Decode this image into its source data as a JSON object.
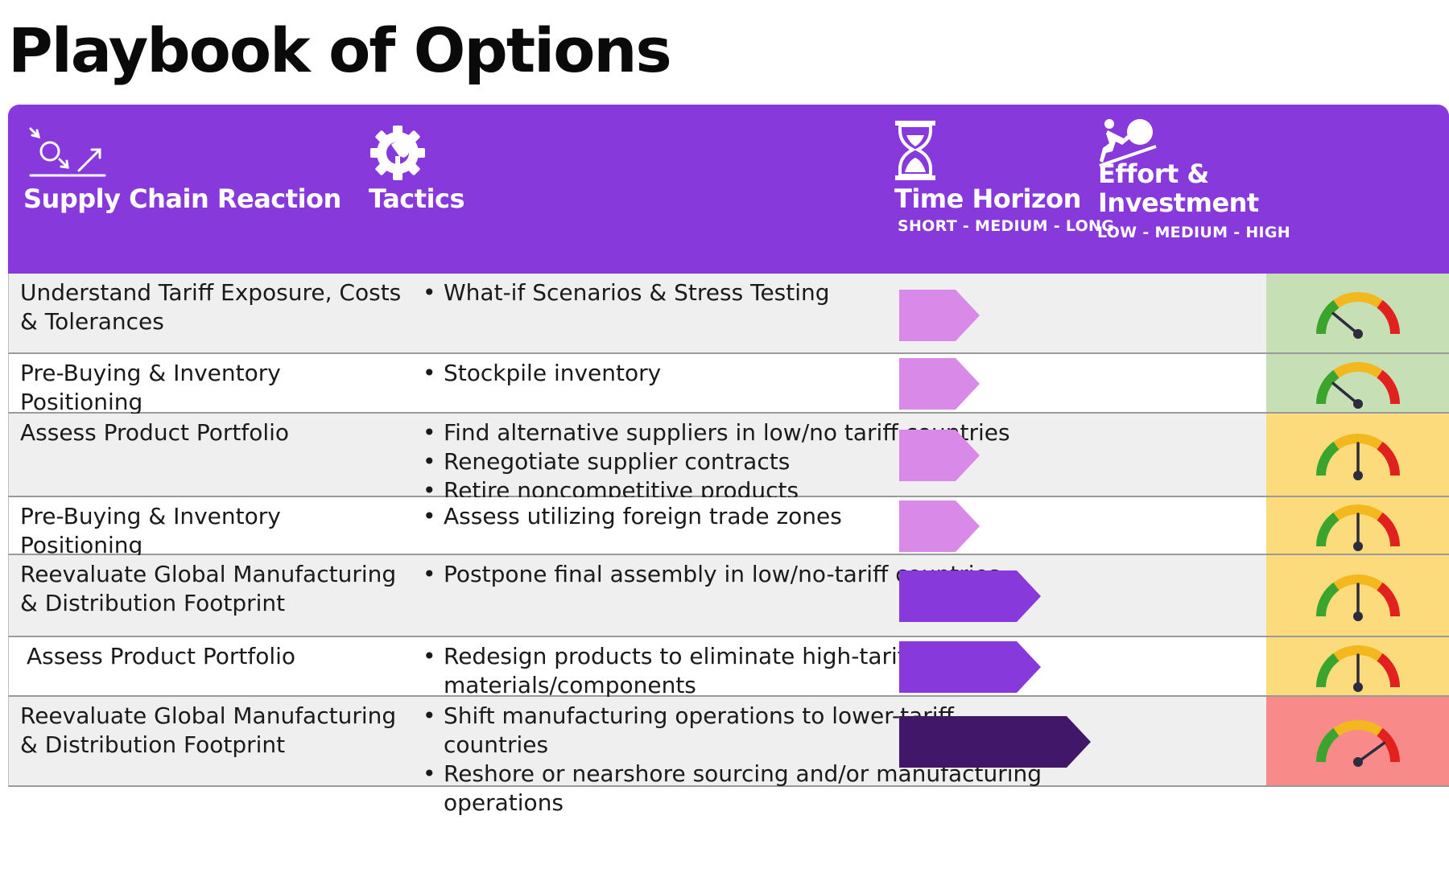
{
  "title": "Playbook of Options",
  "header": {
    "reaction": {
      "label": "Supply Chain Reaction",
      "icon": "process-flow-icon"
    },
    "tactics": {
      "label": "Tactics",
      "icon": "gear-hand-icon"
    },
    "time": {
      "label": "Time Horizon",
      "sub": "SHORT - MEDIUM - LONG",
      "icon": "hourglass-icon"
    },
    "effort": {
      "label_line1": "Effort &",
      "label_line2": "Investment",
      "sub": "LOW - MEDIUM - HIGH",
      "icon": "push-boulder-icon"
    }
  },
  "colors": {
    "header_bg": "#8739dc",
    "short": "#d98ae8",
    "medium": "#8739dc",
    "long": "#41176a",
    "effort_low": "#c6dfb5",
    "effort_medium": "#fbdb7c",
    "effort_high": "#f88a8a"
  },
  "rows": [
    {
      "reaction": "Understand Tariff Exposure, Costs & Tolerances",
      "tactics": [
        "What-if Scenarios & Stress Testing"
      ],
      "time": "short",
      "effort": "low",
      "gauge_fraction": 0.22
    },
    {
      "reaction": "Pre-Buying & Inventory Positioning",
      "tactics": [
        "Stockpile inventory"
      ],
      "time": "short",
      "effort": "low",
      "gauge_fraction": 0.22
    },
    {
      "reaction": "Assess Product Portfolio",
      "tactics": [
        "Find alternative suppliers in low/no tariff countries",
        "Renegotiate supplier contracts",
        "Retire noncompetitive products"
      ],
      "time": "short",
      "effort": "medium",
      "gauge_fraction": 0.5
    },
    {
      "reaction": "Pre-Buying & Inventory Positioning",
      "tactics": [
        "Assess utilizing foreign trade zones"
      ],
      "time": "short",
      "effort": "medium",
      "gauge_fraction": 0.5
    },
    {
      "reaction": "Reevaluate Global Manufacturing & Distribution Footprint",
      "tactics": [
        "Postpone final assembly in low/no-tariff countries"
      ],
      "time": "medium",
      "effort": "medium",
      "gauge_fraction": 0.5
    },
    {
      "reaction": "Assess Product Portfolio",
      "tactics": [
        "Redesign products to eliminate high-tariff materials/components"
      ],
      "time": "medium",
      "effort": "medium",
      "gauge_fraction": 0.5
    },
    {
      "reaction": "Reevaluate Global Manufacturing & Distribution Footprint",
      "tactics": [
        "Shift manufacturing operations to lower-tariff countries",
        "Reshore or nearshore sourcing and/or manufacturing operations"
      ],
      "time": "long",
      "effort": "high",
      "gauge_fraction": 0.8
    }
  ]
}
